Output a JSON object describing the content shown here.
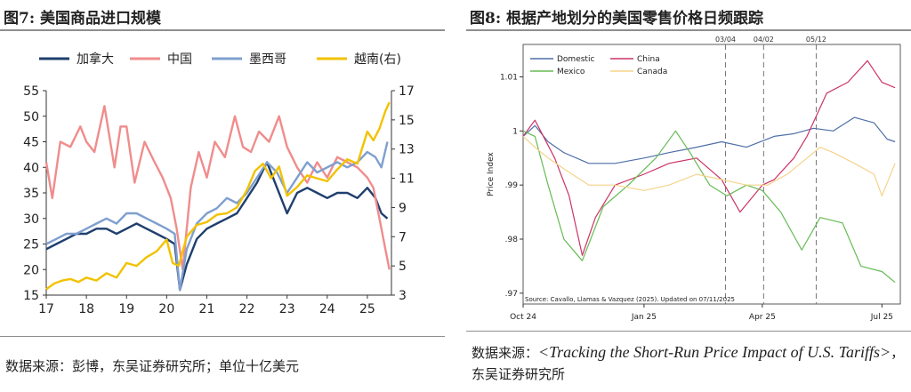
{
  "left": {
    "title": "图7: 美国商品进口规模",
    "source": "数据来源：彭博，东吴证券研究所；单位十亿美元"
  },
  "right": {
    "title": "图8: 根据产地划分的美国零售价格日频跟踪",
    "source_prefix": "数据来源：",
    "source_italic": "<Tracking the Short-Run Price Impact of U.S. Tariffs>",
    "source_suffix": "，东吴证券研究所"
  },
  "chart_data": [
    {
      "type": "line",
      "title": "美国商品进口规模",
      "x_ticks": [
        "17",
        "18",
        "19",
        "20",
        "21",
        "22",
        "23",
        "24",
        "25"
      ],
      "x_range": [
        2017.0,
        2025.6
      ],
      "ylim": [
        15,
        55
      ],
      "y_ticks": [
        15,
        20,
        25,
        30,
        35,
        40,
        45,
        50,
        55
      ],
      "y2lim": [
        3,
        17
      ],
      "y2_ticks": [
        3,
        5,
        7,
        9,
        11,
        13,
        15,
        17
      ],
      "legend_placement": "top",
      "grid": false,
      "series": [
        {
          "name": "加拿大",
          "axis": "left",
          "color": "#1f3f6e",
          "x": [
            2017.0,
            2017.25,
            2017.5,
            2017.75,
            2018.0,
            2018.25,
            2018.5,
            2018.75,
            2019.0,
            2019.25,
            2019.5,
            2019.75,
            2020.0,
            2020.2,
            2020.33,
            2020.5,
            2020.75,
            2021.0,
            2021.25,
            2021.5,
            2021.75,
            2022.0,
            2022.25,
            2022.5,
            2022.75,
            2023.0,
            2023.25,
            2023.5,
            2023.75,
            2024.0,
            2024.25,
            2024.5,
            2024.75,
            2025.0,
            2025.2,
            2025.35,
            2025.5
          ],
          "values": [
            24,
            25,
            26,
            27,
            27,
            28,
            28,
            27,
            28,
            29,
            28,
            27,
            26,
            25,
            16,
            21,
            26,
            28,
            29,
            30,
            31,
            34,
            37,
            41,
            36,
            31,
            35,
            36,
            35,
            34,
            35,
            35,
            34,
            36,
            34,
            31,
            30
          ]
        },
        {
          "name": "中国",
          "axis": "left",
          "color": "#f08c8c",
          "x": [
            2017.0,
            2017.15,
            2017.35,
            2017.6,
            2017.85,
            2018.0,
            2018.2,
            2018.45,
            2018.7,
            2018.85,
            2019.0,
            2019.2,
            2019.45,
            2019.7,
            2019.9,
            2020.1,
            2020.25,
            2020.4,
            2020.6,
            2020.8,
            2021.0,
            2021.2,
            2021.45,
            2021.7,
            2021.9,
            2022.1,
            2022.3,
            2022.55,
            2022.8,
            2023.0,
            2023.25,
            2023.5,
            2023.75,
            2024.0,
            2024.25,
            2024.5,
            2024.75,
            2025.0,
            2025.15,
            2025.3,
            2025.45,
            2025.55
          ],
          "values": [
            41,
            34,
            45,
            44,
            48,
            45,
            43,
            52,
            40,
            48,
            48,
            37,
            45,
            41,
            38,
            34,
            28,
            20,
            36,
            43,
            38,
            45,
            42,
            50,
            44,
            43,
            47,
            45,
            50,
            44,
            40,
            37,
            41,
            38,
            42,
            41,
            40,
            38,
            36,
            30,
            24,
            20
          ]
        },
        {
          "name": "墨西哥",
          "axis": "left",
          "color": "#7f9fcf",
          "x": [
            2017.0,
            2017.25,
            2017.5,
            2017.75,
            2018.0,
            2018.25,
            2018.5,
            2018.75,
            2019.0,
            2019.25,
            2019.5,
            2019.75,
            2020.0,
            2020.2,
            2020.33,
            2020.5,
            2020.75,
            2021.0,
            2021.25,
            2021.5,
            2021.75,
            2022.0,
            2022.25,
            2022.5,
            2022.75,
            2023.0,
            2023.25,
            2023.5,
            2023.75,
            2024.0,
            2024.25,
            2024.5,
            2024.75,
            2025.0,
            2025.2,
            2025.35,
            2025.5
          ],
          "values": [
            25,
            26,
            27,
            27,
            28,
            29,
            30,
            29,
            31,
            31,
            30,
            29,
            28,
            27,
            16,
            24,
            29,
            31,
            32,
            34,
            33,
            35,
            38,
            41,
            39,
            35,
            38,
            41,
            39,
            40,
            41,
            40,
            41,
            43,
            42,
            40,
            45
          ]
        },
        {
          "name": "越南(右)",
          "axis": "right",
          "color": "#f2c200",
          "x": [
            2017.0,
            2017.2,
            2017.4,
            2017.6,
            2017.8,
            2018.0,
            2018.25,
            2018.5,
            2018.75,
            2019.0,
            2019.25,
            2019.5,
            2019.75,
            2020.0,
            2020.15,
            2020.3,
            2020.5,
            2020.75,
            2021.0,
            2021.25,
            2021.5,
            2021.75,
            2022.0,
            2022.2,
            2022.4,
            2022.6,
            2022.8,
            2023.0,
            2023.25,
            2023.5,
            2023.75,
            2024.0,
            2024.25,
            2024.5,
            2024.75,
            2025.0,
            2025.15,
            2025.3,
            2025.45,
            2025.55
          ],
          "values": [
            3.4,
            3.8,
            4.0,
            4.1,
            3.9,
            4.2,
            4.0,
            4.5,
            4.2,
            5.2,
            5.0,
            5.6,
            6.0,
            6.8,
            5.2,
            5.0,
            7.0,
            7.8,
            8.0,
            8.5,
            8.6,
            9.0,
            10.2,
            11.5,
            12.0,
            11.0,
            11.8,
            9.8,
            10.4,
            11.2,
            11.0,
            10.8,
            11.6,
            12.3,
            12.0,
            14.2,
            13.6,
            14.4,
            15.6,
            16.2
          ]
        }
      ]
    },
    {
      "type": "line",
      "ylabel": "Price Index",
      "x_ticks": [
        "Oct 24",
        "Jan 25",
        "Apr 25",
        "Jul 25"
      ],
      "x_range": [
        "2024-10-01",
        "2025-07-15"
      ],
      "ylim": [
        0.968,
        1.016
      ],
      "y_ticks": [
        0.97,
        0.98,
        0.99,
        1,
        1.01
      ],
      "y_tick_labels": [
        ".97",
        ".98",
        ".99",
        "1",
        "1.01"
      ],
      "legend_placement": "top-left",
      "grid": false,
      "vlines": [
        "03/04",
        "04/02",
        "05/12"
      ],
      "note": "Source: Cavallo, Llamas & Vazquez (2025). Updated on 07/11/2025",
      "series": [
        {
          "name": "Domestic",
          "color": "#4f6fa8",
          "x": [
            "2024-10-01",
            "2024-10-10",
            "2024-10-20",
            "2024-11-01",
            "2024-11-20",
            "2024-12-10",
            "2025-01-01",
            "2025-01-20",
            "2025-02-10",
            "2025-03-01",
            "2025-03-20",
            "2025-04-10",
            "2025-04-25",
            "2025-05-10",
            "2025-05-25",
            "2025-06-10",
            "2025-06-25",
            "2025-07-05",
            "2025-07-11"
          ],
          "values": [
            0.999,
            1.001,
            0.998,
            0.996,
            0.994,
            0.994,
            0.995,
            0.996,
            0.997,
            0.998,
            0.997,
            0.999,
            0.9995,
            1.0005,
            1.0,
            1.0025,
            1.0015,
            0.9985,
            0.998
          ]
        },
        {
          "name": "China",
          "color": "#cc3366",
          "x": [
            "2024-10-01",
            "2024-10-10",
            "2024-10-25",
            "2024-11-05",
            "2024-11-15",
            "2024-11-25",
            "2024-12-10",
            "2025-01-01",
            "2025-01-20",
            "2025-02-10",
            "2025-03-01",
            "2025-03-15",
            "2025-04-01",
            "2025-04-10",
            "2025-04-25",
            "2025-05-05",
            "2025-05-20",
            "2025-06-05",
            "2025-06-20",
            "2025-07-01",
            "2025-07-11"
          ],
          "values": [
            0.999,
            1.002,
            0.995,
            0.988,
            0.977,
            0.984,
            0.99,
            0.992,
            0.994,
            0.995,
            0.991,
            0.985,
            0.99,
            0.991,
            0.995,
            0.999,
            1.007,
            1.009,
            1.013,
            1.009,
            1.008
          ]
        },
        {
          "name": "Mexico",
          "color": "#66bb55",
          "x": [
            "2024-10-01",
            "2024-10-10",
            "2024-10-20",
            "2024-11-01",
            "2024-11-15",
            "2024-12-01",
            "2024-12-20",
            "2025-01-10",
            "2025-01-25",
            "2025-02-05",
            "2025-02-20",
            "2025-03-05",
            "2025-03-20",
            "2025-04-01",
            "2025-04-15",
            "2025-05-01",
            "2025-05-15",
            "2025-06-01",
            "2025-06-15",
            "2025-07-01",
            "2025-07-11"
          ],
          "values": [
            1.0,
            0.999,
            0.99,
            0.98,
            0.976,
            0.986,
            0.99,
            0.995,
            1.0,
            0.996,
            0.99,
            0.988,
            0.99,
            0.989,
            0.985,
            0.978,
            0.984,
            0.983,
            0.975,
            0.974,
            0.972
          ]
        },
        {
          "name": "Canada",
          "color": "#f5d38a",
          "x": [
            "2024-10-01",
            "2024-10-10",
            "2024-10-20",
            "2024-11-01",
            "2024-11-20",
            "2024-12-10",
            "2025-01-01",
            "2025-01-20",
            "2025-02-10",
            "2025-03-01",
            "2025-03-20",
            "2025-04-05",
            "2025-04-20",
            "2025-05-05",
            "2025-05-15",
            "2025-05-25",
            "2025-06-10",
            "2025-06-25",
            "2025-07-01",
            "2025-07-11"
          ],
          "values": [
            0.999,
            0.997,
            0.995,
            0.993,
            0.99,
            0.99,
            0.989,
            0.99,
            0.992,
            0.991,
            0.99,
            0.99,
            0.992,
            0.995,
            0.997,
            0.996,
            0.994,
            0.992,
            0.988,
            0.994
          ]
        }
      ]
    }
  ]
}
